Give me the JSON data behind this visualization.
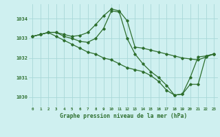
{
  "title": "Graphe pression niveau de la mer (hPa)",
  "background_color": "#cff0f0",
  "line_color": "#2d6e2d",
  "grid_color": "#a8d8d8",
  "x_labels": [
    "0",
    "1",
    "2",
    "3",
    "4",
    "5",
    "6",
    "7",
    "8",
    "9",
    "10",
    "11",
    "12",
    "13",
    "14",
    "15",
    "16",
    "17",
    "18",
    "19",
    "20",
    "21",
    "22",
    "23"
  ],
  "ylim": [
    1029.5,
    1034.75
  ],
  "yticks": [
    1030,
    1031,
    1032,
    1033,
    1034
  ],
  "series": [
    [
      1033.1,
      1033.2,
      1033.3,
      1033.3,
      1033.2,
      1033.1,
      1033.15,
      1033.3,
      1033.7,
      1034.15,
      1034.5,
      1034.4,
      1033.9,
      1032.55,
      1032.5,
      1032.4,
      1032.3,
      1032.2,
      1032.1,
      1032.0,
      1031.95,
      1031.9,
      1032.05,
      1032.2
    ],
    [
      1033.1,
      1033.2,
      1033.3,
      1033.3,
      1033.1,
      1033.0,
      1032.85,
      1032.8,
      1033.0,
      1033.5,
      1034.4,
      1034.35,
      1033.0,
      1032.2,
      1031.7,
      1031.3,
      1031.0,
      1030.6,
      1030.1,
      1030.15,
      1031.0,
      1032.05,
      1032.1,
      1032.2
    ],
    [
      1033.1,
      1033.2,
      1033.3,
      1033.1,
      1032.9,
      1032.7,
      1032.5,
      1032.3,
      1032.2,
      1032.0,
      1031.9,
      1031.7,
      1031.5,
      1031.4,
      1031.3,
      1031.1,
      1030.8,
      1030.35,
      1030.1,
      1030.15,
      1030.65,
      1030.65,
      1032.1,
      1032.2
    ]
  ]
}
